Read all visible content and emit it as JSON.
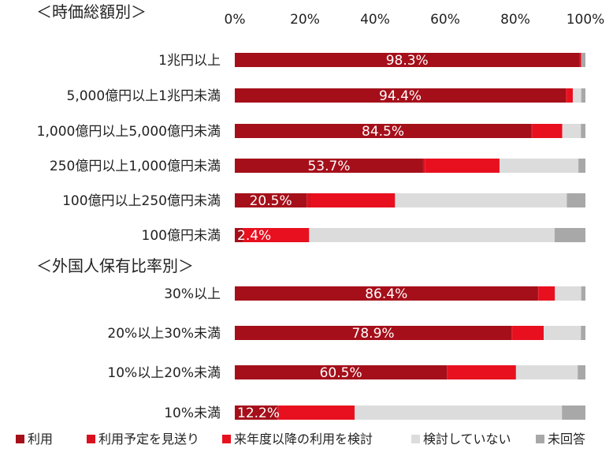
{
  "chart_data": {
    "type": "bar",
    "orientation": "horizontal",
    "stacked": "percent",
    "xlim": [
      0,
      100
    ],
    "x_ticks": [
      "0%",
      "20%",
      "40%",
      "60%",
      "80%",
      "100%"
    ],
    "grid": false,
    "legend_position": "bottom",
    "series": [
      {
        "name": "利用",
        "color": "#a50f1a"
      },
      {
        "name": "利用予定を見送り",
        "color": "#d9101d"
      },
      {
        "name": "来年度以降の利用を検討",
        "color": "#e8101f"
      },
      {
        "name": "検討していない",
        "color": "#dcdcdc"
      },
      {
        "name": "未回答",
        "color": "#a8a8a8"
      }
    ],
    "groups": [
      {
        "title": "＜時価総額別＞",
        "rows": [
          {
            "category": "1兆円以上",
            "values": [
              98.3,
              0.5,
              0.0,
              0.0,
              1.2
            ],
            "label": "98.3%"
          },
          {
            "category": "5,000億円以上1兆円未満",
            "values": [
              94.4,
              0.3,
              1.7,
              2.4,
              1.2
            ],
            "label": "94.4%"
          },
          {
            "category": "1,000億円以上5,000億円未満",
            "values": [
              84.5,
              0.3,
              8.6,
              5.3,
              1.3
            ],
            "label": "84.5%"
          },
          {
            "category": "250億円以上1,000億円未満",
            "values": [
              53.7,
              0.5,
              21.3,
              22.5,
              2.0
            ],
            "label": "53.7%"
          },
          {
            "category": "100億円以上250億円未満",
            "values": [
              20.5,
              1.3,
              23.9,
              49.0,
              5.3
            ],
            "label": "20.5%"
          },
          {
            "category": "100億円未満",
            "values": [
              2.4,
              0.3,
              18.5,
              70.0,
              8.8
            ],
            "label": "2.4%"
          }
        ]
      },
      {
        "title": "＜外国人保有比率別＞",
        "rows": [
          {
            "category": "30%以上",
            "values": [
              86.4,
              0.3,
              4.6,
              7.5,
              1.2
            ],
            "label": "86.4%"
          },
          {
            "category": "20%以上30%未満",
            "values": [
              78.9,
              0.3,
              8.9,
              10.6,
              1.3
            ],
            "label": "78.9%"
          },
          {
            "category": "10%以上20%未満",
            "values": [
              60.5,
              0.3,
              19.4,
              17.6,
              2.2
            ],
            "label": "60.5%"
          },
          {
            "category": "10%未満",
            "values": [
              12.2,
              0.3,
              21.7,
              59.1,
              6.7
            ],
            "label": "12.2%"
          }
        ]
      }
    ]
  }
}
